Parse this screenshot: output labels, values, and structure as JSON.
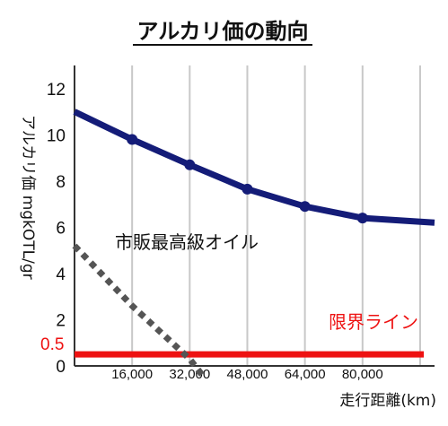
{
  "chart_data": {
    "type": "line",
    "title": "アルカリ価の動向",
    "ylabel": "アルカリ価 mgkOTL/gr",
    "xlabel": "走行距離(km)",
    "ylim": [
      0,
      13
    ],
    "xlim": [
      0,
      100000
    ],
    "y_ticks": [
      0,
      2,
      4,
      6,
      8,
      10,
      12
    ],
    "y_tick_labels": [
      "0",
      "2",
      "4",
      "6",
      "8",
      "10",
      "12"
    ],
    "x_ticks": [
      16000,
      32000,
      48000,
      64000,
      80000
    ],
    "x_tick_labels": [
      "16,000",
      "32,000",
      "48,000",
      "64,000",
      "80,000"
    ],
    "grid": "vertical",
    "series": [
      {
        "name": "",
        "color": "#141c78",
        "style": "solid",
        "markers": true,
        "x": [
          0,
          16000,
          32000,
          48000,
          64000,
          80000,
          100000
        ],
        "y": [
          11.0,
          9.8,
          8.7,
          7.65,
          6.9,
          6.4,
          6.2
        ],
        "marker_x": [
          16000,
          32000,
          48000,
          64000,
          80000
        ]
      },
      {
        "name": "市販最高級オイル",
        "color": "#555555",
        "style": "dotted",
        "markers": false,
        "x": [
          0,
          16000,
          32000,
          36000
        ],
        "y": [
          5.2,
          2.6,
          0.3,
          -0.5
        ]
      }
    ],
    "limit_line": {
      "label": "限界ライン",
      "value": 0.5,
      "value_label": "0.5",
      "color": "#ee1111"
    }
  }
}
